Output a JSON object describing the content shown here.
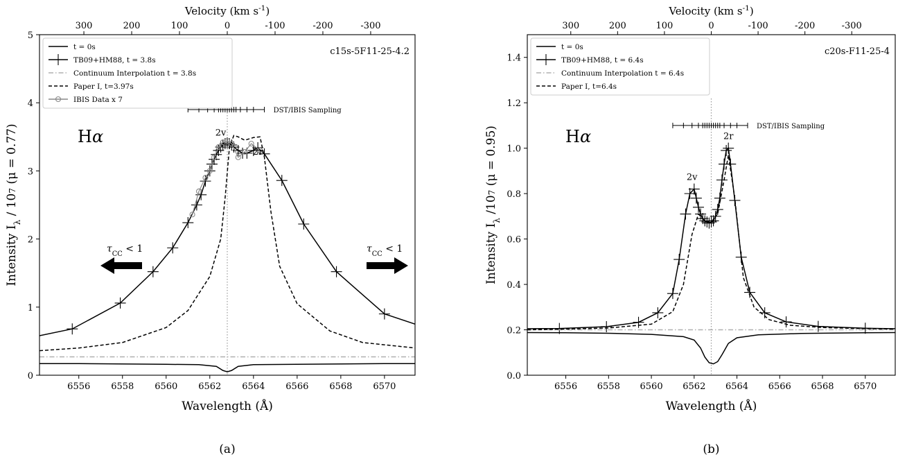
{
  "chart_data": [
    {
      "type": "line",
      "panel_label": "(a)",
      "model_label": "c15s-5F11-25-4.2",
      "line_label": "Hα",
      "xlabel": "Wavelength (Å)",
      "ylabel": "Intensity I_λ / 10^7 (μ = 0.77)",
      "top_xlabel": "Velocity (km s^-1)",
      "xlim": [
        6554.2,
        6571.4
      ],
      "ylim": [
        0,
        5
      ],
      "xticks": [
        6556,
        6558,
        6560,
        6562,
        6564,
        6566,
        6568,
        6570
      ],
      "yticks": [
        0,
        1,
        2,
        3,
        4,
        5
      ],
      "top_ticks": [
        300,
        200,
        100,
        0,
        -100,
        -200,
        -300
      ],
      "top_tick_labels": [
        "300",
        "200",
        "100",
        "0",
        "-100",
        "-200",
        "-300"
      ],
      "line_center": 6562.8,
      "legend": [
        "t = 0s",
        "TB09+HM88, t = 3.8s",
        "Continuum Interpolation t = 3.8s",
        "Paper I, t=3.97s",
        "IBIS Data x 7"
      ],
      "series": [
        {
          "name": "t = 0s",
          "style": "solid",
          "color": "#000000",
          "x": [
            6554.2,
            6556,
            6558,
            6560,
            6561.5,
            6562.3,
            6562.6,
            6562.8,
            6563.0,
            6563.3,
            6564.0,
            6566,
            6568,
            6570,
            6571.4
          ],
          "y": [
            0.17,
            0.17,
            0.165,
            0.16,
            0.155,
            0.13,
            0.07,
            0.05,
            0.07,
            0.13,
            0.155,
            0.16,
            0.165,
            0.17,
            0.17
          ]
        },
        {
          "name": "TB09+HM88, t = 3.8s",
          "style": "solid-plus",
          "color": "#000000",
          "x": [
            6554.2,
            6555.7,
            6557.9,
            6559.4,
            6560.3,
            6561.0,
            6561.4,
            6561.6,
            6561.8,
            6562.0,
            6562.1,
            6562.2,
            6562.3,
            6562.4,
            6562.5,
            6562.6,
            6562.7,
            6562.8,
            6562.9,
            6563.0,
            6563.1,
            6563.3,
            6563.5,
            6563.7,
            6564.0,
            6564.2,
            6564.5,
            6565.3,
            6566.3,
            6567.8,
            6570.0,
            6571.4
          ],
          "y": [
            0.58,
            0.68,
            1.06,
            1.52,
            1.87,
            2.24,
            2.5,
            2.65,
            2.85,
            3.0,
            3.1,
            3.17,
            3.24,
            3.3,
            3.35,
            3.38,
            3.4,
            3.41,
            3.4,
            3.38,
            3.35,
            3.3,
            3.26,
            3.26,
            3.3,
            3.34,
            3.25,
            2.86,
            2.22,
            1.52,
            0.9,
            0.75
          ],
          "marker_x": [
            6555.7,
            6557.9,
            6559.4,
            6560.3,
            6561.0,
            6561.4,
            6561.6,
            6561.8,
            6562.0,
            6562.1,
            6562.2,
            6562.3,
            6562.4,
            6562.5,
            6562.6,
            6562.7,
            6562.8,
            6562.9,
            6563.0,
            6563.1,
            6563.3,
            6563.5,
            6563.7,
            6564.0,
            6564.2,
            6564.5,
            6565.3,
            6566.3,
            6567.8,
            6570.0
          ]
        },
        {
          "name": "Continuum Interpolation t = 3.8s",
          "style": "dashdot",
          "color": "#b0b0b0",
          "x": [
            6554.2,
            6571.4
          ],
          "y": [
            0.27,
            0.27
          ]
        },
        {
          "name": "Paper I, t=3.97s",
          "style": "dashed",
          "color": "#000000",
          "x": [
            6554.2,
            6556,
            6558,
            6560,
            6561,
            6562,
            6562.5,
            6562.7,
            6562.9,
            6563.1,
            6563.3,
            6563.6,
            6564.0,
            6564.3,
            6564.5,
            6564.8,
            6565.2,
            6566,
            6567.5,
            6569,
            6570.5,
            6571.4
          ],
          "y": [
            0.36,
            0.4,
            0.48,
            0.7,
            0.95,
            1.45,
            2.0,
            2.6,
            3.35,
            3.52,
            3.5,
            3.45,
            3.49,
            3.5,
            3.2,
            2.4,
            1.6,
            1.05,
            0.65,
            0.48,
            0.43,
            0.4
          ]
        },
        {
          "name": "IBIS Data x 7",
          "style": "circle",
          "color": "#888888",
          "x": [
            6561.2,
            6561.5,
            6561.8,
            6562.0,
            6562.2,
            6562.4,
            6562.6,
            6562.8,
            6563.0,
            6563.3,
            6563.6,
            6563.9,
            6564.3
          ],
          "y": [
            2.36,
            2.7,
            2.9,
            3.0,
            3.2,
            3.35,
            3.42,
            3.44,
            3.4,
            3.2,
            3.28,
            3.4,
            3.3
          ]
        }
      ],
      "sampling_label": "DST/IBIS Sampling",
      "sampling_y": 3.9,
      "sampling_x": [
        6561.0,
        6561.5,
        6561.9,
        6562.2,
        6562.4,
        6562.5,
        6562.6,
        6562.7,
        6562.8,
        6562.9,
        6563.0,
        6563.1,
        6563.2,
        6563.4,
        6563.7,
        6564.0,
        6564.5
      ],
      "annotations": [
        {
          "text": "2v",
          "x": 6562.5,
          "y": 3.52
        },
        {
          "text": "2r",
          "x": 6564.2,
          "y": 3.24
        }
      ],
      "tau_label": "τCC < 1"
    },
    {
      "type": "line",
      "panel_label": "(b)",
      "model_label": "c20s-F11-25-4",
      "line_label": "Hα",
      "xlabel": "Wavelength (Å)",
      "ylabel": "Intensity I_λ /10^7 (μ = 0.95)",
      "top_xlabel": "Velocity (km s^-1)",
      "xlim": [
        6554.2,
        6571.4
      ],
      "ylim": [
        0,
        1.5
      ],
      "xticks": [
        6556,
        6558,
        6560,
        6562,
        6564,
        6566,
        6568,
        6570
      ],
      "yticks": [
        0.0,
        0.2,
        0.4,
        0.6,
        0.8,
        1.0,
        1.2,
        1.4
      ],
      "ytick_labels": [
        "0.0",
        "0.2",
        "0.4",
        "0.6",
        "0.8",
        "1.0",
        "1.2",
        "1.4"
      ],
      "top_ticks": [
        300,
        200,
        100,
        0,
        -100,
        -200,
        -300
      ],
      "top_tick_labels": [
        "300",
        "200",
        "100",
        "0",
        "-100",
        "-200",
        "-300"
      ],
      "line_center": 6562.8,
      "legend": [
        "t = 0s",
        "TB09+HM88, t = 6.4s",
        "Continuum Interpolation t = 6.4s",
        "Paper I, t=6.4s"
      ],
      "series": [
        {
          "name": "t = 0s",
          "style": "solid",
          "color": "#000000",
          "x": [
            6554.2,
            6556,
            6558,
            6560,
            6561.5,
            6562.0,
            6562.3,
            6562.5,
            6562.7,
            6562.9,
            6563.1,
            6563.3,
            6563.6,
            6564.0,
            6565,
            6567,
            6570,
            6571.4
          ],
          "y": [
            0.188,
            0.187,
            0.185,
            0.18,
            0.17,
            0.155,
            0.12,
            0.08,
            0.055,
            0.05,
            0.06,
            0.09,
            0.14,
            0.165,
            0.178,
            0.184,
            0.187,
            0.188
          ]
        },
        {
          "name": "TB09+HM88, t = 6.4s",
          "style": "solid-plus",
          "color": "#000000",
          "x": [
            6554.2,
            6555.7,
            6557.9,
            6559.4,
            6560.3,
            6561.0,
            6561.3,
            6561.6,
            6561.8,
            6562.0,
            6562.1,
            6562.2,
            6562.3,
            6562.4,
            6562.5,
            6562.6,
            6562.7,
            6562.8,
            6562.9,
            6563.0,
            6563.1,
            6563.2,
            6563.3,
            6563.4,
            6563.5,
            6563.6,
            6563.7,
            6563.9,
            6564.2,
            6564.6,
            6565.3,
            6566.3,
            6567.8,
            6570.0,
            6571.4
          ],
          "y": [
            0.205,
            0.206,
            0.214,
            0.233,
            0.275,
            0.36,
            0.51,
            0.71,
            0.8,
            0.82,
            0.78,
            0.74,
            0.71,
            0.69,
            0.68,
            0.675,
            0.67,
            0.675,
            0.68,
            0.7,
            0.73,
            0.78,
            0.86,
            0.93,
            0.99,
            1.0,
            0.93,
            0.77,
            0.52,
            0.365,
            0.275,
            0.235,
            0.215,
            0.207,
            0.205
          ],
          "marker_x": [
            6555.7,
            6557.9,
            6559.4,
            6560.3,
            6561.0,
            6561.3,
            6561.6,
            6561.8,
            6562.0,
            6562.1,
            6562.2,
            6562.3,
            6562.4,
            6562.5,
            6562.6,
            6562.7,
            6562.8,
            6562.9,
            6563.0,
            6563.1,
            6563.2,
            6563.3,
            6563.4,
            6563.5,
            6563.6,
            6563.7,
            6563.9,
            6564.2,
            6564.6,
            6565.3,
            6566.3,
            6567.8,
            6570.0
          ]
        },
        {
          "name": "Continuum Interpolation t = 6.4s",
          "style": "dashdot",
          "color": "#b0b0b0",
          "x": [
            6554.2,
            6571.4
          ],
          "y": [
            0.2,
            0.2
          ]
        },
        {
          "name": "Paper I, t=6.4s",
          "style": "dashed",
          "color": "#000000",
          "x": [
            6554.2,
            6556,
            6558,
            6560,
            6561.0,
            6561.5,
            6561.9,
            6562.2,
            6562.5,
            6562.8,
            6563.1,
            6563.4,
            6563.6,
            6563.9,
            6564.3,
            6564.8,
            6565.5,
            6566.5,
            6568,
            6570,
            6571.4
          ],
          "y": [
            0.2,
            0.203,
            0.208,
            0.225,
            0.28,
            0.4,
            0.62,
            0.71,
            0.68,
            0.675,
            0.71,
            0.86,
            0.97,
            0.78,
            0.43,
            0.3,
            0.245,
            0.22,
            0.21,
            0.205,
            0.203
          ]
        }
      ],
      "sampling_label": "DST/IBIS Sampling",
      "sampling_y": 1.1,
      "sampling_x": [
        6561.0,
        6561.5,
        6561.9,
        6562.2,
        6562.4,
        6562.5,
        6562.6,
        6562.7,
        6562.8,
        6562.9,
        6563.0,
        6563.1,
        6563.2,
        6563.4,
        6563.7,
        6564.0,
        6564.5
      ],
      "annotations": [
        {
          "text": "2v",
          "x": 6561.9,
          "y": 0.86
        },
        {
          "text": "2r",
          "x": 6563.6,
          "y": 1.04
        }
      ]
    }
  ]
}
